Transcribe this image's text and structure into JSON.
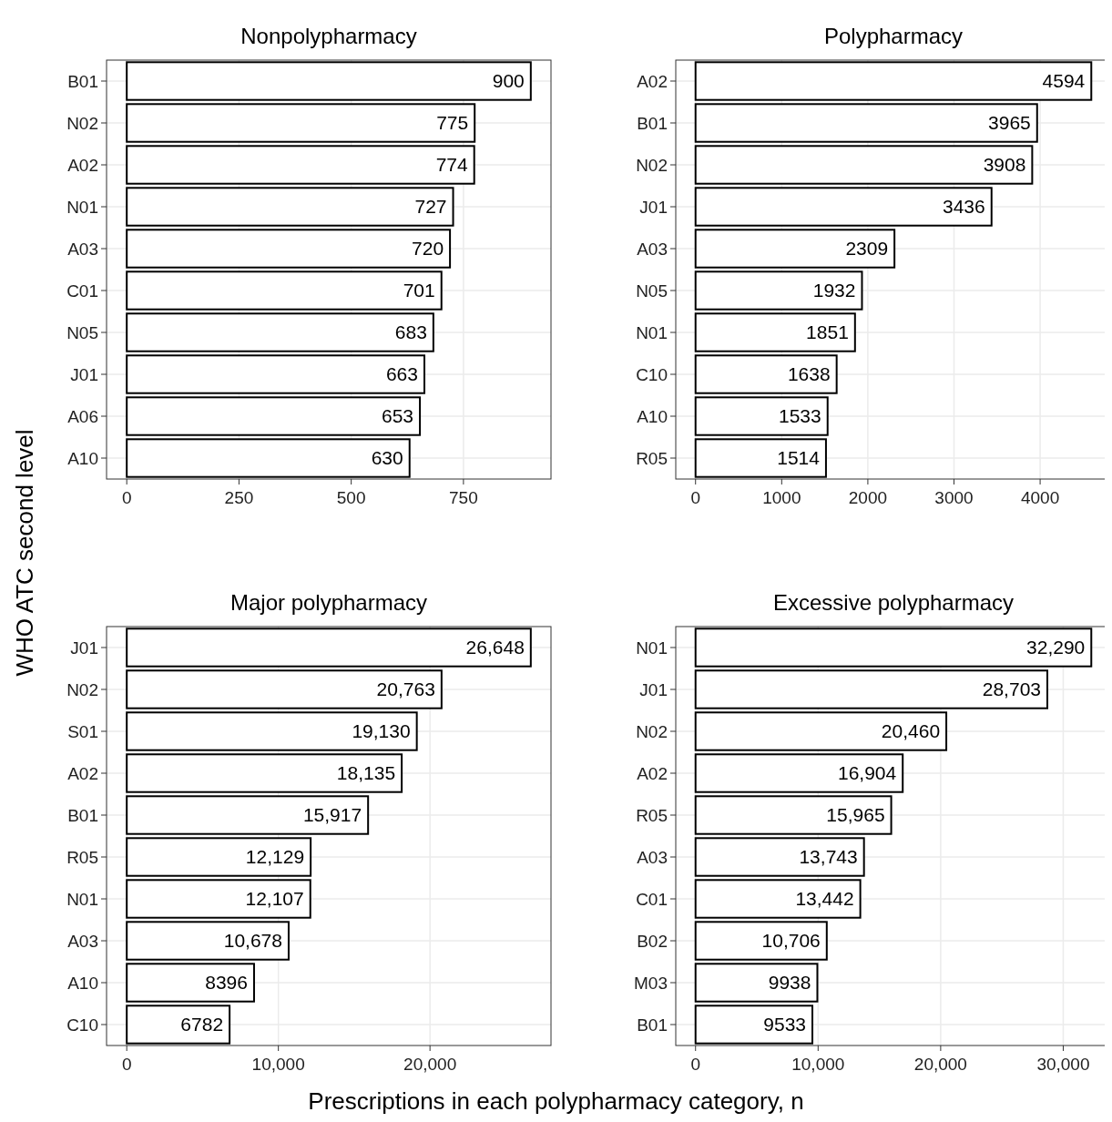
{
  "chart_data": [
    {
      "type": "bar",
      "orientation": "horizontal",
      "title": "Nonpolypharmacy",
      "ylabel": "WHO ATC second level",
      "categories": [
        "B01",
        "N02",
        "A02",
        "N01",
        "A03",
        "C01",
        "N05",
        "J01",
        "A06",
        "A10"
      ],
      "values": [
        900,
        775,
        774,
        727,
        720,
        701,
        683,
        663,
        653,
        630
      ],
      "color": "#ffffff",
      "xlim": [
        -45,
        945
      ],
      "xticks": [
        0,
        250,
        500,
        750
      ],
      "grid": true,
      "data_labels": true
    },
    {
      "type": "bar",
      "orientation": "horizontal",
      "title": "Polypharmacy",
      "categories": [
        "A02",
        "B01",
        "N02",
        "J01",
        "A03",
        "N05",
        "N01",
        "C10",
        "A10",
        "R05"
      ],
      "values": [
        4594,
        3965,
        3908,
        3436,
        2309,
        1932,
        1851,
        1638,
        1533,
        1514
      ],
      "color": "#ffffff",
      "xlim": [
        -229.7,
        4823.7
      ],
      "xticks": [
        0,
        1000,
        2000,
        3000,
        4000
      ],
      "grid": true,
      "data_labels": true
    },
    {
      "type": "bar",
      "orientation": "horizontal",
      "title": "Major polypharmacy",
      "xlabel": "Prescriptions in each polypharmacy category, n",
      "categories": [
        "J01",
        "N02",
        "S01",
        "A02",
        "B01",
        "R05",
        "N01",
        "A03",
        "A10",
        "C10"
      ],
      "values": [
        26648,
        20763,
        19130,
        18135,
        15917,
        12129,
        12107,
        10678,
        8396,
        6782
      ],
      "value_labels": [
        "26,648",
        "20,763",
        "19,130",
        "18,135",
        "15,917",
        "12,129",
        "12,107",
        "10,678",
        "8396",
        "6782"
      ],
      "color": "#ffffff",
      "xlim": [
        -1332.4,
        27980.4
      ],
      "xticks": [
        0,
        {
          "value": 10000,
          "label": "10,000"
        },
        {
          "value": 20000,
          "label": "20,000"
        }
      ],
      "grid": true
    },
    {
      "type": "bar",
      "orientation": "horizontal",
      "title": "Excessive polypharmacy",
      "categories": [
        "N01",
        "J01",
        "N02",
        "A02",
        "R05",
        "A03",
        "C01",
        "B02",
        "M03",
        "B01"
      ],
      "values": [
        32290,
        28703,
        20460,
        16904,
        15965,
        13743,
        13442,
        10706,
        9938,
        9533
      ],
      "value_labels": [
        "32,290",
        "28,703",
        "20,460",
        "16,904",
        "15,965",
        "13,743",
        "13,442",
        "10,706",
        "9938",
        "9533"
      ],
      "color": "#ffffff",
      "xlim": [
        -1614.5,
        33904.5
      ],
      "xticks": [
        0,
        {
          "value": 10000,
          "label": "10,000"
        },
        {
          "value": 20000,
          "label": "20,000"
        },
        {
          "value": 30000,
          "label": "30,000"
        }
      ],
      "grid": true
    }
  ]
}
